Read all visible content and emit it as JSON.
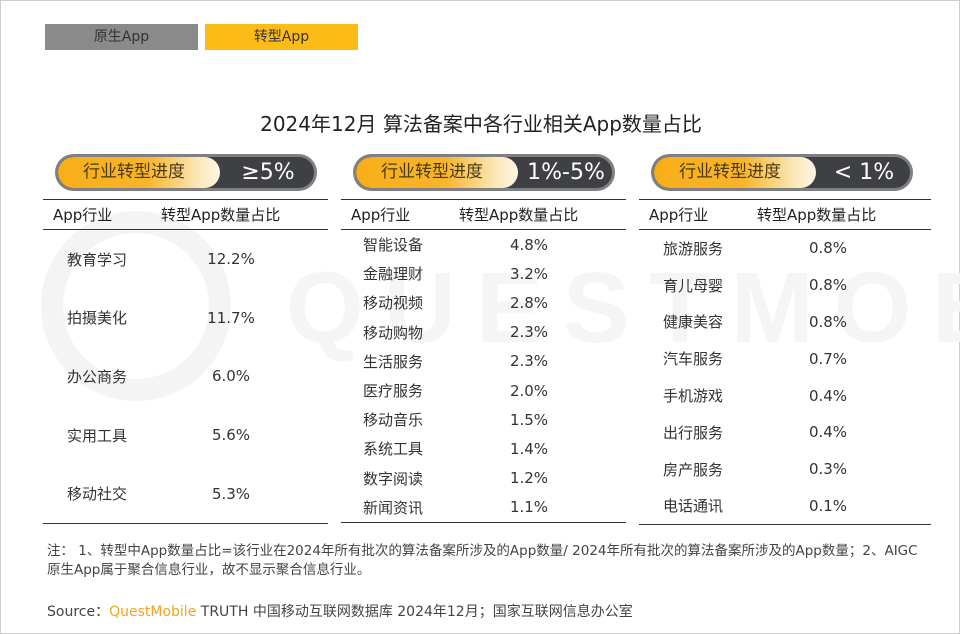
{
  "legend": {
    "native_label": "原生App",
    "transformed_label": "转型App",
    "native_color": "#8a8a8a",
    "transformed_color": "#fdbb17"
  },
  "title": "2024年12月 算法备案中各行业相关App数量占比",
  "watermark": "QUESTMOBILE",
  "columns": {
    "industry": "App行业",
    "share": "转型App数量占比"
  },
  "panels": [
    {
      "badge_label": "行业转型进度",
      "badge_value": "≥5%",
      "rows": [
        {
          "industry": "教育学习",
          "share": "12.2%"
        },
        {
          "industry": "拍摄美化",
          "share": "11.7%"
        },
        {
          "industry": "办公商务",
          "share": "6.0%"
        },
        {
          "industry": "实用工具",
          "share": "5.6%"
        },
        {
          "industry": "移动社交",
          "share": "5.3%"
        }
      ]
    },
    {
      "badge_label": "行业转型进度",
      "badge_value": "1%-5%",
      "rows": [
        {
          "industry": "智能设备",
          "share": "4.8%"
        },
        {
          "industry": "金融理财",
          "share": "3.2%"
        },
        {
          "industry": "移动视频",
          "share": "2.8%"
        },
        {
          "industry": "移动购物",
          "share": "2.3%"
        },
        {
          "industry": "生活服务",
          "share": "2.3%"
        },
        {
          "industry": "医疗服务",
          "share": "2.0%"
        },
        {
          "industry": "移动音乐",
          "share": "1.5%"
        },
        {
          "industry": "系统工具",
          "share": "1.4%"
        },
        {
          "industry": "数字阅读",
          "share": "1.2%"
        },
        {
          "industry": "新闻资讯",
          "share": "1.1%"
        }
      ]
    },
    {
      "badge_label": "行业转型进度",
      "badge_value": "< 1%",
      "rows": [
        {
          "industry": "旅游服务",
          "share": "0.8%"
        },
        {
          "industry": "育儿母婴",
          "share": "0.8%"
        },
        {
          "industry": "健康美容",
          "share": "0.8%"
        },
        {
          "industry": "汽车服务",
          "share": "0.7%"
        },
        {
          "industry": "手机游戏",
          "share": "0.4%"
        },
        {
          "industry": "出行服务",
          "share": "0.4%"
        },
        {
          "industry": "房产服务",
          "share": "0.3%"
        },
        {
          "industry": "电话通讯",
          "share": "0.1%"
        }
      ]
    }
  ],
  "note": "注： 1、转型中App数量占比=该行业在2024年所有批次的算法备案所涉及的App数量/ 2024年所有批次的算法备案所涉及的App数量；2、AIGC原生App属于聚合信息行业，故不显示聚合信息行业。",
  "source": {
    "prefix": "Source：",
    "brand": "QuestMobile",
    "rest": " TRUTH 中国移动互联网数据库 2024年12月；国家互联网信息办公室"
  },
  "chart_data": {
    "type": "table",
    "title": "2024年12月 算法备案中各行业相关App数量占比",
    "columns": [
      "App行业",
      "转型App数量占比"
    ],
    "groups": [
      {
        "name": "行业转型进度 ≥5%",
        "categories": [
          "教育学习",
          "拍摄美化",
          "办公商务",
          "实用工具",
          "移动社交"
        ],
        "values": [
          12.2,
          11.7,
          6.0,
          5.6,
          5.3
        ]
      },
      {
        "name": "行业转型进度 1%-5%",
        "categories": [
          "智能设备",
          "金融理财",
          "移动视频",
          "移动购物",
          "生活服务",
          "医疗服务",
          "移动音乐",
          "系统工具",
          "数字阅读",
          "新闻资讯"
        ],
        "values": [
          4.8,
          3.2,
          2.8,
          2.3,
          2.3,
          2.0,
          1.5,
          1.4,
          1.2,
          1.1
        ]
      },
      {
        "name": "行业转型进度 < 1%",
        "categories": [
          "旅游服务",
          "育儿母婴",
          "健康美容",
          "汽车服务",
          "手机游戏",
          "出行服务",
          "房产服务",
          "电话通讯"
        ],
        "values": [
          0.8,
          0.8,
          0.8,
          0.7,
          0.4,
          0.4,
          0.3,
          0.1
        ]
      }
    ],
    "unit": "%",
    "legend": [
      "原生App",
      "转型App"
    ]
  }
}
